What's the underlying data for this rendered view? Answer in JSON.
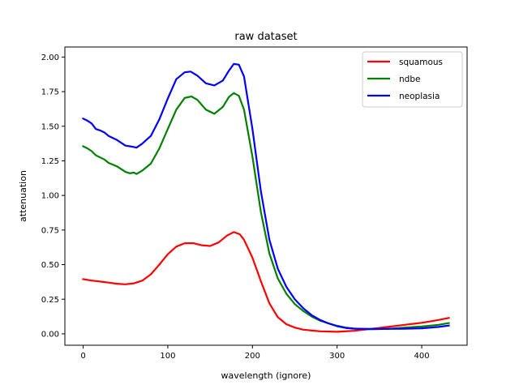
{
  "chart_data": {
    "type": "line",
    "title": "raw dataset",
    "xlabel": "wavelength (ignore)",
    "ylabel": "attenuation",
    "xlim": [
      -21.6,
      453.6
    ],
    "ylim": [
      -0.0825,
      2.0725
    ],
    "xticks": [
      0,
      100,
      200,
      300,
      400
    ],
    "yticks": [
      0.0,
      0.25,
      0.5,
      0.75,
      1.0,
      1.25,
      1.5,
      1.75,
      2.0
    ],
    "ytick_labels": [
      "0.00",
      "0.25",
      "0.50",
      "0.75",
      "1.00",
      "1.25",
      "1.50",
      "1.75",
      "2.00"
    ],
    "grid": false,
    "legend_position": "top-right",
    "series": [
      {
        "name": "squamous",
        "color": "#ff0000",
        "points": [
          [
            0,
            0.395
          ],
          [
            10,
            0.385
          ],
          [
            20,
            0.378
          ],
          [
            30,
            0.37
          ],
          [
            40,
            0.362
          ],
          [
            50,
            0.358
          ],
          [
            60,
            0.365
          ],
          [
            70,
            0.385
          ],
          [
            80,
            0.43
          ],
          [
            90,
            0.5
          ],
          [
            100,
            0.575
          ],
          [
            110,
            0.63
          ],
          [
            120,
            0.655
          ],
          [
            130,
            0.655
          ],
          [
            140,
            0.64
          ],
          [
            150,
            0.635
          ],
          [
            160,
            0.66
          ],
          [
            170,
            0.71
          ],
          [
            178,
            0.735
          ],
          [
            185,
            0.72
          ],
          [
            190,
            0.68
          ],
          [
            200,
            0.55
          ],
          [
            210,
            0.38
          ],
          [
            220,
            0.22
          ],
          [
            230,
            0.12
          ],
          [
            240,
            0.07
          ],
          [
            250,
            0.045
          ],
          [
            260,
            0.03
          ],
          [
            280,
            0.018
          ],
          [
            300,
            0.015
          ],
          [
            320,
            0.022
          ],
          [
            340,
            0.035
          ],
          [
            360,
            0.05
          ],
          [
            380,
            0.065
          ],
          [
            400,
            0.08
          ],
          [
            420,
            0.1
          ],
          [
            432,
            0.115
          ]
        ]
      },
      {
        "name": "ndbe",
        "color": "#008000",
        "points": [
          [
            0,
            1.355
          ],
          [
            5,
            1.34
          ],
          [
            10,
            1.32
          ],
          [
            15,
            1.29
          ],
          [
            20,
            1.275
          ],
          [
            25,
            1.26
          ],
          [
            30,
            1.235
          ],
          [
            40,
            1.21
          ],
          [
            50,
            1.17
          ],
          [
            55,
            1.16
          ],
          [
            60,
            1.165
          ],
          [
            63,
            1.155
          ],
          [
            70,
            1.18
          ],
          [
            80,
            1.23
          ],
          [
            90,
            1.34
          ],
          [
            100,
            1.48
          ],
          [
            110,
            1.62
          ],
          [
            120,
            1.705
          ],
          [
            128,
            1.715
          ],
          [
            135,
            1.69
          ],
          [
            145,
            1.62
          ],
          [
            155,
            1.59
          ],
          [
            165,
            1.64
          ],
          [
            172,
            1.71
          ],
          [
            178,
            1.74
          ],
          [
            184,
            1.72
          ],
          [
            190,
            1.62
          ],
          [
            200,
            1.28
          ],
          [
            210,
            0.88
          ],
          [
            220,
            0.58
          ],
          [
            230,
            0.4
          ],
          [
            240,
            0.29
          ],
          [
            250,
            0.215
          ],
          [
            260,
            0.165
          ],
          [
            270,
            0.125
          ],
          [
            280,
            0.095
          ],
          [
            290,
            0.075
          ],
          [
            300,
            0.058
          ],
          [
            310,
            0.045
          ],
          [
            320,
            0.038
          ],
          [
            340,
            0.033
          ],
          [
            360,
            0.036
          ],
          [
            380,
            0.045
          ],
          [
            400,
            0.053
          ],
          [
            420,
            0.065
          ],
          [
            432,
            0.078
          ]
        ]
      },
      {
        "name": "neoplasia",
        "color": "#0000ff",
        "points": [
          [
            0,
            1.555
          ],
          [
            5,
            1.54
          ],
          [
            10,
            1.52
          ],
          [
            15,
            1.48
          ],
          [
            20,
            1.47
          ],
          [
            25,
            1.455
          ],
          [
            30,
            1.43
          ],
          [
            40,
            1.4
          ],
          [
            50,
            1.36
          ],
          [
            55,
            1.355
          ],
          [
            60,
            1.35
          ],
          [
            63,
            1.345
          ],
          [
            70,
            1.375
          ],
          [
            80,
            1.43
          ],
          [
            90,
            1.55
          ],
          [
            100,
            1.7
          ],
          [
            110,
            1.84
          ],
          [
            120,
            1.89
          ],
          [
            127,
            1.895
          ],
          [
            135,
            1.865
          ],
          [
            145,
            1.81
          ],
          [
            155,
            1.795
          ],
          [
            165,
            1.83
          ],
          [
            172,
            1.9
          ],
          [
            178,
            1.95
          ],
          [
            184,
            1.945
          ],
          [
            190,
            1.86
          ],
          [
            200,
            1.48
          ],
          [
            210,
            1.03
          ],
          [
            220,
            0.68
          ],
          [
            230,
            0.47
          ],
          [
            240,
            0.34
          ],
          [
            250,
            0.25
          ],
          [
            260,
            0.185
          ],
          [
            270,
            0.135
          ],
          [
            280,
            0.1
          ],
          [
            290,
            0.075
          ],
          [
            300,
            0.055
          ],
          [
            310,
            0.043
          ],
          [
            320,
            0.037
          ],
          [
            340,
            0.035
          ],
          [
            360,
            0.036
          ],
          [
            380,
            0.037
          ],
          [
            400,
            0.04
          ],
          [
            420,
            0.05
          ],
          [
            432,
            0.06
          ]
        ]
      }
    ]
  }
}
